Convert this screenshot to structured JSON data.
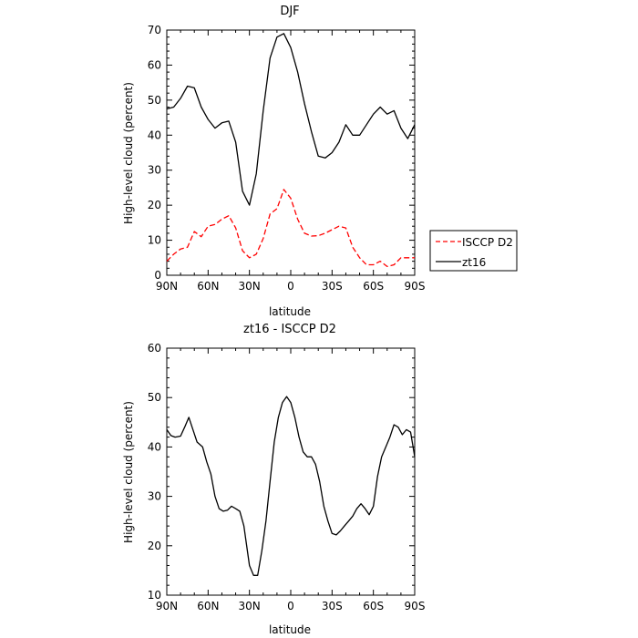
{
  "chart_data": [
    {
      "type": "line",
      "title": "DJF",
      "xlabel": "latitude",
      "ylabel": "High-level cloud (percent)",
      "xlim": [
        90,
        -90
      ],
      "ylim": [
        0,
        70
      ],
      "xticks": [
        90,
        60,
        30,
        0,
        -30,
        -60,
        -90
      ],
      "xtick_labels": [
        "90N",
        "60N",
        "30N",
        "0",
        "30S",
        "60S",
        "90S"
      ],
      "yticks": [
        0,
        10,
        20,
        30,
        40,
        50,
        60,
        70
      ],
      "ytick_labels": [
        "0",
        "10",
        "20",
        "30",
        "40",
        "50",
        "60",
        "70"
      ],
      "legend": "right",
      "series": [
        {
          "name": "ISCCP D2",
          "color": "#ff0000",
          "dash": "dashed",
          "x": [
            90,
            85,
            80,
            75,
            70,
            65,
            60,
            55,
            50,
            45,
            40,
            35,
            30,
            25,
            20,
            15,
            10,
            5,
            0,
            -5,
            -10,
            -15,
            -20,
            -25,
            -30,
            -35,
            -40,
            -45,
            -50,
            -55,
            -60,
            -65,
            -70,
            -75,
            -80,
            -85,
            -90
          ],
          "y": [
            4,
            6,
            7.5,
            8,
            12.5,
            11,
            14,
            14.5,
            16,
            17,
            13.5,
            7,
            5,
            6,
            10.5,
            17.5,
            19,
            24.5,
            22,
            16,
            12,
            11.2,
            11.3,
            12,
            13,
            14,
            13.5,
            8,
            5,
            3,
            3,
            4,
            2.5,
            3,
            5,
            5,
            5
          ]
        },
        {
          "name": "zt16",
          "color": "#000000",
          "dash": "solid",
          "x": [
            90,
            85,
            80,
            75,
            70,
            65,
            60,
            55,
            50,
            45,
            40,
            35,
            30,
            25,
            20,
            15,
            10,
            5,
            0,
            -5,
            -10,
            -15,
            -20,
            -25,
            -30,
            -35,
            -40,
            -45,
            -50,
            -55,
            -60,
            -65,
            -70,
            -75,
            -80,
            -85,
            -90
          ],
          "y": [
            47.5,
            48,
            50.5,
            54,
            53.5,
            48,
            44.5,
            42,
            43.5,
            44,
            38,
            24,
            20,
            29,
            47,
            62,
            68,
            69,
            65,
            58,
            49,
            41,
            34,
            33.5,
            35,
            38,
            43,
            40,
            40,
            43,
            46,
            48,
            46,
            47,
            42,
            39,
            43
          ]
        }
      ]
    },
    {
      "type": "line",
      "title": "zt16 - ISCCP D2",
      "xlabel": "latitude",
      "ylabel": "High-level cloud (percent)",
      "xlim": [
        90,
        -90
      ],
      "ylim": [
        10,
        60
      ],
      "xticks": [
        90,
        60,
        30,
        0,
        -30,
        -60,
        -90
      ],
      "xtick_labels": [
        "90N",
        "60N",
        "30N",
        "0",
        "30S",
        "60S",
        "90S"
      ],
      "yticks": [
        10,
        20,
        30,
        40,
        50,
        60
      ],
      "ytick_labels": [
        "10",
        "20",
        "30",
        "40",
        "50",
        "60"
      ],
      "series": [
        {
          "color": "#000000",
          "dash": "solid",
          "x": [
            90,
            87,
            84,
            80,
            77,
            74,
            71,
            68,
            64,
            61,
            58,
            55,
            52,
            49,
            46,
            43,
            40,
            37,
            34,
            30,
            27,
            24,
            21,
            18,
            15,
            12,
            9,
            6,
            3,
            0,
            -3,
            -6,
            -9,
            -12,
            -15,
            -18,
            -21,
            -24,
            -27,
            -30,
            -33,
            -36,
            -39,
            -42,
            -45,
            -48,
            -51,
            -54,
            -57,
            -60,
            -63,
            -66,
            -69,
            -72,
            -75,
            -78,
            -81,
            -84,
            -87,
            -90
          ],
          "y": [
            43.5,
            42.3,
            42,
            42.2,
            44,
            46,
            43.5,
            41,
            40,
            37,
            34.5,
            30,
            27.5,
            27,
            27.2,
            28,
            27.5,
            27,
            24,
            16,
            14,
            14,
            19,
            25,
            33,
            41,
            46,
            49,
            50.2,
            49,
            46,
            42,
            39,
            38,
            38,
            36.5,
            33,
            28,
            25,
            22.5,
            22.2,
            23,
            24,
            25,
            26,
            27.5,
            28.5,
            27.5,
            26.3,
            28,
            34,
            38,
            40,
            42,
            44.5,
            44,
            42.5,
            43.5,
            43,
            38
          ]
        }
      ]
    }
  ]
}
